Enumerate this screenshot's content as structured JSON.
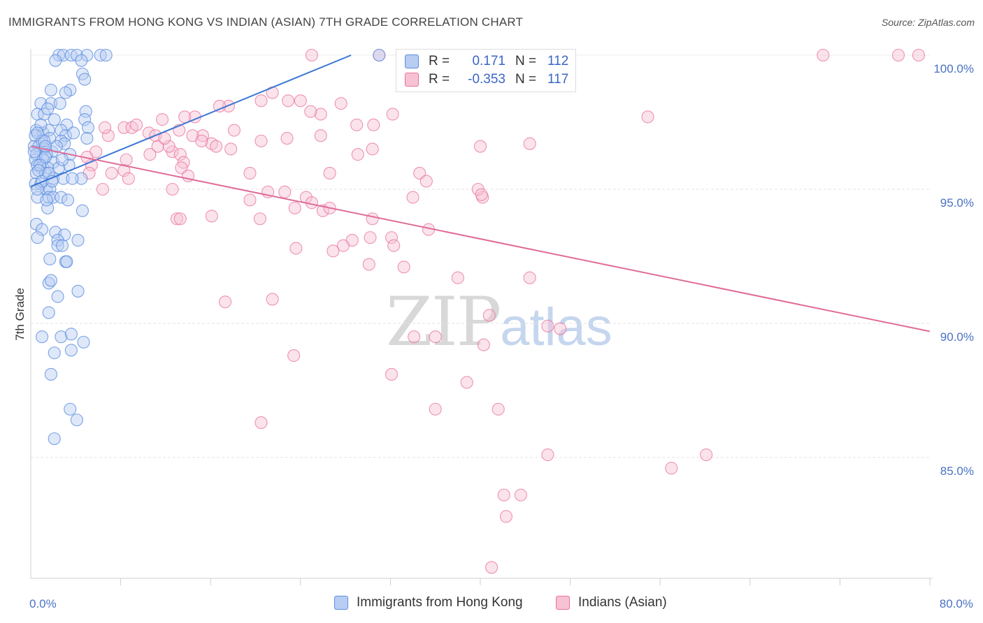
{
  "title": "IMMIGRANTS FROM HONG KONG VS INDIAN (ASIAN) 7TH GRADE CORRELATION CHART",
  "source": "Source: ZipAtlas.com",
  "watermark": {
    "zip": "ZIP",
    "atlas": "atlas"
  },
  "legend_top": [
    {
      "key": "R =",
      "r": "0.171",
      "nkey": "N =",
      "n": "112"
    },
    {
      "key": "R =",
      "r": "-0.353",
      "nkey": "N =",
      "n": "117"
    }
  ],
  "legend_bottom": [
    "Immigrants from Hong Kong",
    "Indians (Asian)"
  ],
  "chart_data": {
    "type": "scatter",
    "xlabel": "",
    "ylabel": "7th Grade",
    "xlim": [
      0,
      80
    ],
    "ylim": [
      80.6,
      100.8
    ],
    "x_tick_labels": [
      {
        "v": 0,
        "label": "0.0%"
      },
      {
        "v": 80,
        "label": "80.0%"
      }
    ],
    "x_minor_ticks": [
      8,
      16,
      24,
      32,
      40,
      48,
      56,
      64,
      72,
      80
    ],
    "y_ticks": [
      {
        "v": 100,
        "label": "100.0%"
      },
      {
        "v": 95,
        "label": "95.0%"
      },
      {
        "v": 90,
        "label": "90.0%"
      },
      {
        "v": 85,
        "label": "85.0%"
      }
    ],
    "grid": true,
    "legend_placement": "top-center",
    "colors": {
      "hk": "#5b8ee0",
      "hk_fill": "#b7cdf2",
      "ind": "#e8729c",
      "ind_fill": "#f6c2d4"
    },
    "series": [
      {
        "name": "Immigrants from Hong Kong",
        "trend": [
          [
            0.0,
            95.1
          ],
          [
            28.5,
            100.0
          ]
        ],
        "points": [
          [
            2.5,
            100
          ],
          [
            2.9,
            100
          ],
          [
            3.6,
            100
          ],
          [
            4.1,
            100
          ],
          [
            5.0,
            100
          ],
          [
            6.2,
            100
          ],
          [
            6.7,
            100
          ],
          [
            31.0,
            100
          ],
          [
            2.2,
            99.8
          ],
          [
            4.5,
            99.8
          ],
          [
            4.6,
            99.3
          ],
          [
            4.8,
            99.1
          ],
          [
            1.8,
            98.7
          ],
          [
            3.5,
            98.7
          ],
          [
            3.1,
            98.6
          ],
          [
            0.9,
            98.2
          ],
          [
            1.8,
            98.2
          ],
          [
            2.6,
            98.2
          ],
          [
            4.9,
            97.9
          ],
          [
            0.6,
            97.8
          ],
          [
            1.2,
            97.8
          ],
          [
            1.5,
            98.0
          ],
          [
            4.8,
            97.6
          ],
          [
            3.2,
            97.4
          ],
          [
            5.1,
            97.3
          ],
          [
            0.5,
            97.2
          ],
          [
            1.1,
            97.1
          ],
          [
            1.6,
            97.2
          ],
          [
            2.7,
            97.2
          ],
          [
            3.1,
            97.0
          ],
          [
            0.4,
            97.0
          ],
          [
            1.7,
            96.9
          ],
          [
            2.7,
            96.8
          ],
          [
            5.0,
            96.9
          ],
          [
            3.0,
            96.7
          ],
          [
            0.3,
            96.6
          ],
          [
            0.7,
            96.6
          ],
          [
            1.2,
            96.5
          ],
          [
            1.9,
            96.4
          ],
          [
            0.5,
            96.3
          ],
          [
            1.4,
            96.3
          ],
          [
            3.5,
            96.3
          ],
          [
            0.4,
            96.1
          ],
          [
            1.1,
            96.1
          ],
          [
            2.0,
            96.0
          ],
          [
            0.6,
            95.9
          ],
          [
            0.9,
            95.8
          ],
          [
            1.5,
            95.8
          ],
          [
            3.4,
            95.9
          ],
          [
            0.5,
            95.6
          ],
          [
            1.3,
            95.6
          ],
          [
            2.0,
            95.4
          ],
          [
            2.9,
            95.4
          ],
          [
            4.5,
            95.4
          ],
          [
            0.4,
            95.2
          ],
          [
            0.9,
            95.2
          ],
          [
            1.4,
            95.0
          ],
          [
            1.7,
            95.0
          ],
          [
            0.6,
            94.7
          ],
          [
            1.6,
            94.7
          ],
          [
            2.0,
            94.7
          ],
          [
            2.7,
            94.7
          ],
          [
            1.5,
            94.3
          ],
          [
            4.6,
            94.2
          ],
          [
            0.5,
            93.7
          ],
          [
            1.0,
            93.5
          ],
          [
            2.2,
            93.4
          ],
          [
            3.0,
            93.3
          ],
          [
            0.6,
            93.2
          ],
          [
            2.4,
            93.1
          ],
          [
            4.2,
            93.1
          ],
          [
            2.4,
            92.9
          ],
          [
            2.8,
            92.9
          ],
          [
            1.7,
            92.4
          ],
          [
            3.1,
            92.3
          ],
          [
            3.2,
            92.3
          ],
          [
            1.6,
            91.5
          ],
          [
            1.8,
            91.6
          ],
          [
            4.2,
            91.2
          ],
          [
            2.4,
            91.0
          ],
          [
            1.6,
            90.4
          ],
          [
            1.0,
            89.5
          ],
          [
            2.7,
            89.5
          ],
          [
            3.6,
            89.6
          ],
          [
            4.7,
            89.3
          ],
          [
            3.6,
            89.0
          ],
          [
            2.1,
            88.9
          ],
          [
            1.8,
            88.1
          ],
          [
            3.5,
            86.8
          ],
          [
            4.1,
            86.4
          ],
          [
            2.1,
            85.7
          ],
          [
            1.0,
            96.8
          ],
          [
            1.3,
            96.2
          ],
          [
            0.8,
            95.9
          ],
          [
            2.3,
            96.6
          ],
          [
            3.8,
            97.1
          ],
          [
            1.2,
            96.8
          ],
          [
            0.7,
            95.7
          ],
          [
            2.5,
            95.8
          ],
          [
            1.0,
            95.3
          ],
          [
            3.3,
            94.6
          ],
          [
            1.3,
            96.6
          ],
          [
            0.9,
            97.4
          ],
          [
            2.1,
            97.6
          ],
          [
            1.6,
            95.6
          ],
          [
            3.7,
            95.4
          ],
          [
            0.3,
            96.4
          ],
          [
            0.6,
            97.1
          ],
          [
            2.8,
            96.1
          ],
          [
            1.4,
            94.6
          ],
          [
            0.6,
            95.0
          ],
          [
            1.9,
            95.3
          ]
        ]
      },
      {
        "name": "Indians (Asian)",
        "trend": [
          [
            0.0,
            96.6
          ],
          [
            80.0,
            89.7
          ]
        ],
        "points": [
          [
            25.0,
            100
          ],
          [
            31.0,
            100
          ],
          [
            47.8,
            100
          ],
          [
            70.5,
            100
          ],
          [
            77.2,
            100
          ],
          [
            79.0,
            100
          ],
          [
            21.5,
            98.6
          ],
          [
            24.0,
            98.3
          ],
          [
            20.5,
            98.3
          ],
          [
            22.9,
            98.3
          ],
          [
            27.6,
            98.2
          ],
          [
            17.6,
            98.1
          ],
          [
            25.8,
            97.8
          ],
          [
            14.6,
            97.7
          ],
          [
            13.7,
            97.7
          ],
          [
            11.7,
            97.6
          ],
          [
            29.0,
            97.4
          ],
          [
            30.5,
            97.4
          ],
          [
            16.8,
            98.1
          ],
          [
            13.2,
            97.2
          ],
          [
            8.3,
            97.3
          ],
          [
            10.5,
            97.1
          ],
          [
            11.1,
            97.0
          ],
          [
            6.9,
            97.0
          ],
          [
            15.3,
            97.0
          ],
          [
            18.1,
            97.2
          ],
          [
            14.4,
            97.0
          ],
          [
            20.5,
            96.8
          ],
          [
            16.1,
            96.7
          ],
          [
            16.5,
            96.6
          ],
          [
            11.3,
            96.6
          ],
          [
            12.6,
            96.4
          ],
          [
            13.3,
            96.3
          ],
          [
            29.1,
            96.3
          ],
          [
            40.0,
            96.6
          ],
          [
            44.4,
            96.7
          ],
          [
            30.4,
            96.5
          ],
          [
            10.6,
            96.3
          ],
          [
            13.6,
            96.0
          ],
          [
            8.5,
            96.1
          ],
          [
            5.4,
            95.9
          ],
          [
            13.4,
            95.8
          ],
          [
            8.3,
            95.7
          ],
          [
            5.2,
            95.6
          ],
          [
            7.2,
            95.6
          ],
          [
            19.5,
            95.6
          ],
          [
            34.6,
            95.6
          ],
          [
            26.6,
            95.6
          ],
          [
            6.4,
            95.0
          ],
          [
            12.6,
            95.0
          ],
          [
            21.1,
            94.9
          ],
          [
            22.6,
            94.9
          ],
          [
            24.5,
            94.7
          ],
          [
            40.2,
            94.7
          ],
          [
            25.0,
            94.5
          ],
          [
            19.5,
            94.6
          ],
          [
            23.5,
            94.3
          ],
          [
            26.0,
            94.2
          ],
          [
            26.6,
            94.3
          ],
          [
            16.1,
            94.0
          ],
          [
            13.0,
            93.9
          ],
          [
            13.3,
            93.9
          ],
          [
            20.4,
            93.9
          ],
          [
            30.4,
            93.9
          ],
          [
            35.4,
            93.5
          ],
          [
            28.6,
            93.1
          ],
          [
            30.2,
            93.2
          ],
          [
            32.1,
            93.2
          ],
          [
            27.8,
            92.9
          ],
          [
            32.3,
            92.9
          ],
          [
            26.9,
            92.7
          ],
          [
            30.1,
            92.2
          ],
          [
            33.2,
            92.1
          ],
          [
            38.0,
            91.7
          ],
          [
            44.4,
            91.7
          ],
          [
            35.2,
            95.3
          ],
          [
            34.0,
            94.7
          ],
          [
            39.8,
            95.0
          ],
          [
            40.1,
            94.8
          ],
          [
            23.6,
            92.8
          ],
          [
            17.3,
            90.8
          ],
          [
            21.5,
            90.9
          ],
          [
            40.8,
            90.3
          ],
          [
            46.0,
            89.9
          ],
          [
            47.1,
            89.8
          ],
          [
            34.1,
            89.5
          ],
          [
            36.0,
            89.5
          ],
          [
            40.3,
            89.2
          ],
          [
            23.4,
            88.8
          ],
          [
            32.1,
            88.1
          ],
          [
            38.8,
            87.8
          ],
          [
            36.0,
            86.8
          ],
          [
            41.6,
            86.8
          ],
          [
            20.5,
            86.3
          ],
          [
            46.0,
            85.1
          ],
          [
            57.0,
            84.6
          ],
          [
            60.1,
            85.1
          ],
          [
            42.1,
            83.6
          ],
          [
            43.6,
            83.6
          ],
          [
            42.3,
            82.8
          ],
          [
            41.0,
            80.9
          ],
          [
            54.9,
            97.7
          ],
          [
            32.2,
            97.8
          ],
          [
            24.9,
            97.9
          ],
          [
            9.0,
            97.3
          ],
          [
            9.4,
            97.4
          ],
          [
            6.6,
            97.3
          ],
          [
            5.8,
            96.4
          ],
          [
            12.3,
            96.6
          ],
          [
            14.0,
            95.5
          ],
          [
            17.8,
            96.5
          ],
          [
            8.7,
            95.4
          ],
          [
            11.9,
            96.9
          ],
          [
            5.0,
            96.2
          ],
          [
            15.2,
            96.8
          ],
          [
            25.8,
            97.0
          ],
          [
            22.8,
            96.9
          ]
        ]
      }
    ]
  }
}
